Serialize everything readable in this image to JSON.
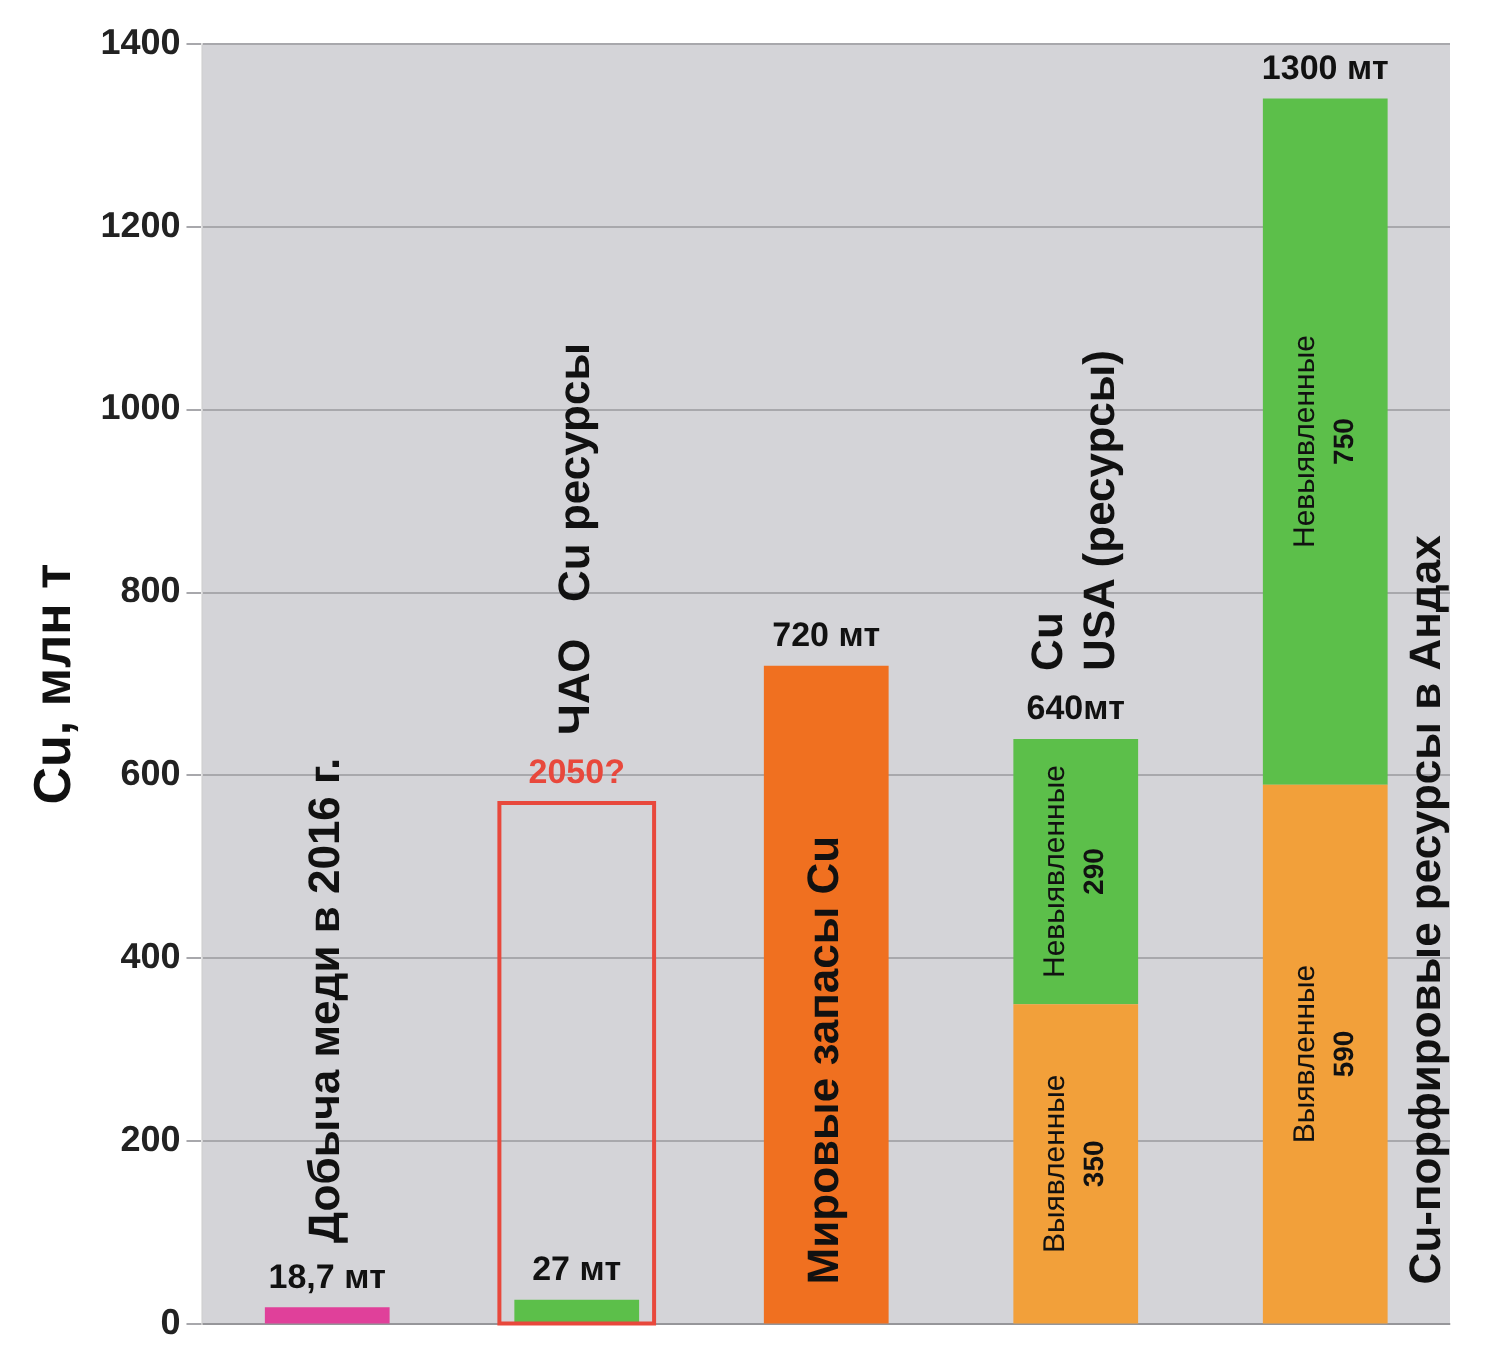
{
  "chart_data": {
    "type": "bar",
    "ylabel": "Cu, млн т",
    "categories": [
      "Добыча меди в 2016 г.",
      "ЧАО   Cu ресурсы",
      "Мировые запасы Cu",
      "Cu\nUSA (ресурсы)",
      "Cu-порфировые ресурсы в Андах"
    ],
    "series": [
      {
        "colors": [
          "#e0409a",
          "#5cbf4a",
          "#f07020",
          null,
          null
        ],
        "values": [
          18.7,
          27,
          720,
          null,
          null
        ],
        "value_labels": [
          "18,7 мт",
          "27 мт",
          "720 мт",
          null,
          null
        ]
      },
      {
        "name": "Выявленные",
        "color": "#f2a03a",
        "values": [
          null,
          null,
          null,
          350,
          590
        ],
        "value_labels": [
          null,
          null,
          null,
          "350",
          "590"
        ]
      },
      {
        "name": "Невыявленные",
        "color": "#5cbf4a",
        "values": [
          null,
          null,
          null,
          290,
          750
        ],
        "base": [
          null,
          null,
          null,
          350,
          590
        ],
        "value_labels": [
          null,
          null,
          null,
          "290",
          "750"
        ]
      },
      {
        "color": "#e8483c",
        "line_style": "solid",
        "values": [
          null,
          570,
          null,
          null,
          null
        ]
      }
    ],
    "annotations": [
      {
        "text": "2050?",
        "x": "ЧАО   Cu ресурсы",
        "y": 570
      },
      {
        "text": "640мт",
        "x": "Cu\nUSA (ресурсы)",
        "y": 640
      },
      {
        "text": "1300 мт",
        "x": "Cu-порфировые ресурсы в Андах",
        "y": 1340
      }
    ],
    "ylim": [
      0,
      1400
    ],
    "yticks": [
      0,
      200,
      400,
      600,
      800,
      1000,
      1200,
      1400
    ],
    "grid": "y",
    "legend": false
  }
}
